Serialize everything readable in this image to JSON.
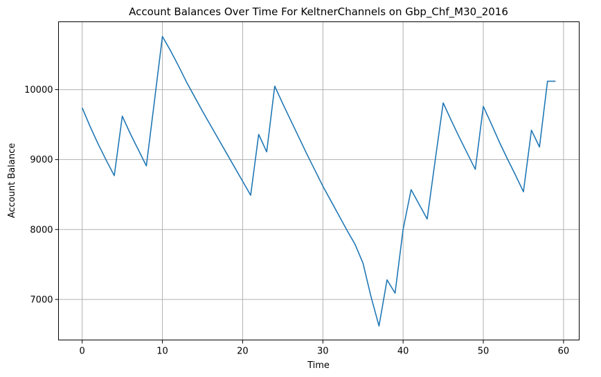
{
  "chart_data": {
    "type": "line",
    "title": "Account Balances Over Time For KeltnerChannels on Gbp_Chf_M30_2016",
    "xlabel": "Time",
    "ylabel": "Account Balance",
    "xlim": [
      -2.95,
      61.95
    ],
    "ylim": [
      6420,
      10970
    ],
    "xticks": [
      0,
      10,
      20,
      30,
      40,
      50,
      60
    ],
    "yticks": [
      7000,
      8000,
      9000,
      10000
    ],
    "x_tick_labels": [
      "0",
      "10",
      "20",
      "30",
      "40",
      "50",
      "60"
    ],
    "y_tick_labels": [
      "7000",
      "8000",
      "9000",
      "10000"
    ],
    "grid": true,
    "legend": "none",
    "colors": {
      "line": "#1f77b4",
      "grid": "#b0b0b0",
      "axis": "#000000"
    },
    "series": [
      {
        "x": [
          0,
          1,
          2,
          3,
          4,
          5,
          6,
          7,
          8,
          9,
          10,
          11,
          12,
          13,
          14,
          15,
          16,
          17,
          18,
          19,
          20,
          21,
          22,
          23,
          24,
          25,
          26,
          27,
          28,
          29,
          30,
          31,
          32,
          33,
          34,
          35,
          36,
          37,
          38,
          39,
          40,
          41,
          42,
          43,
          44,
          45,
          46,
          47,
          48,
          49,
          50,
          51,
          52,
          53,
          54,
          55,
          56,
          57,
          58,
          59
        ],
        "values": [
          9740,
          9470,
          9220,
          8990,
          8770,
          9620,
          9370,
          9140,
          8910,
          9830,
          10760,
          10560,
          10340,
          10110,
          9900,
          9690,
          9490,
          9290,
          9090,
          8890,
          8690,
          8490,
          9360,
          9110,
          10050,
          9800,
          9560,
          9320,
          9080,
          8850,
          8620,
          8410,
          8200,
          7990,
          7790,
          7520,
          7040,
          6620,
          7280,
          7090,
          8000,
          8570,
          8360,
          8150,
          8990,
          9810,
          9560,
          9320,
          9090,
          8860,
          9760,
          9510,
          9250,
          9010,
          8780,
          8540,
          9420,
          9180,
          10120,
          10120
        ]
      }
    ]
  }
}
